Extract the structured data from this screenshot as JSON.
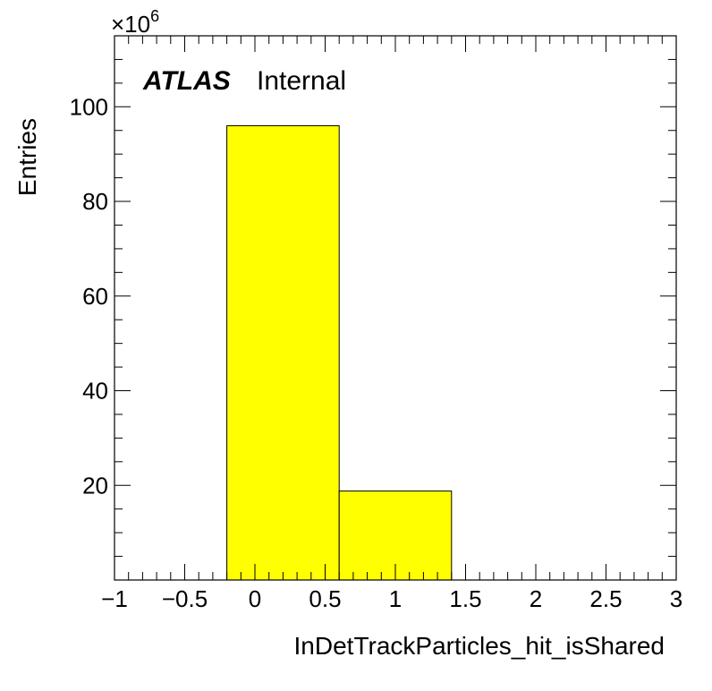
{
  "chart_data": {
    "type": "bar",
    "histogram": true,
    "xlabel": "InDetTrackParticles_hit_isShared",
    "ylabel": "Entries",
    "y_multiplier": "×10",
    "y_multiplier_exp": "6",
    "xlim": [
      -1,
      3
    ],
    "ylim": [
      0,
      115
    ],
    "x_ticks": [
      {
        "v": -1,
        "label": "−1"
      },
      {
        "v": -0.5,
        "label": "−0.5"
      },
      {
        "v": 0,
        "label": "0"
      },
      {
        "v": 0.5,
        "label": "0.5"
      },
      {
        "v": 1,
        "label": "1"
      },
      {
        "v": 1.5,
        "label": "1.5"
      },
      {
        "v": 2,
        "label": "2"
      },
      {
        "v": 2.5,
        "label": "2.5"
      },
      {
        "v": 3,
        "label": "3"
      }
    ],
    "y_ticks": [
      {
        "v": 20,
        "label": "20"
      },
      {
        "v": 40,
        "label": "40"
      },
      {
        "v": 60,
        "label": "60"
      },
      {
        "v": 80,
        "label": "80"
      },
      {
        "v": 100,
        "label": "100"
      }
    ],
    "bins": [
      {
        "lo": -0.2,
        "hi": 0.6,
        "value": 96
      },
      {
        "lo": 0.6,
        "hi": 1.4,
        "value": 18.8
      }
    ],
    "fill_color": "#ffff00",
    "line_color": "#000000",
    "grid": false,
    "annotation": {
      "atlas": "ATLAS",
      "status": "Internal"
    }
  }
}
